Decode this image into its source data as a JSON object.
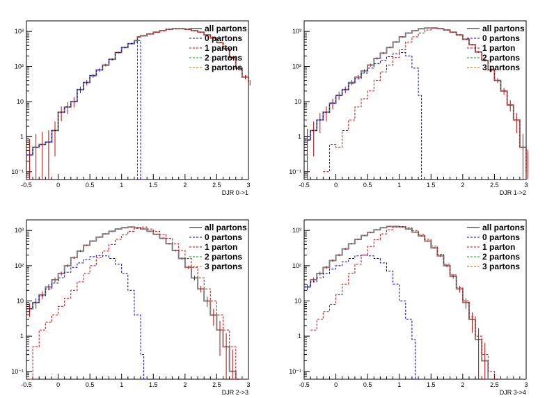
{
  "chart_data": [
    {
      "type": "line",
      "xlabel": "DJR 0->1",
      "xlim": [
        -0.5,
        3
      ],
      "ylim": [
        0.06,
        2000
      ],
      "yscale": "log",
      "grid": false,
      "legend_position": "top-right",
      "x_ticks": [
        "-0.5",
        "0",
        "0.5",
        "1",
        "1.5",
        "2",
        "2.5",
        "3"
      ],
      "y_ticks": [
        "10⁻¹",
        "1",
        "10",
        "10²",
        "10³"
      ],
      "series": [
        {
          "name": "all partons",
          "color": "#808080",
          "style": "solid",
          "x": [
            -0.5,
            -0.4,
            -0.3,
            -0.2,
            -0.1,
            0,
            0.1,
            0.2,
            0.3,
            0.4,
            0.5,
            0.6,
            0.7,
            0.8,
            0.9,
            1.0,
            1.1,
            1.2,
            1.25,
            1.3,
            1.4,
            1.5,
            1.6,
            1.7,
            1.8,
            1.9,
            2.0,
            2.1,
            2.2,
            2.3,
            2.4,
            2.5,
            2.6,
            2.7,
            2.8,
            2.9,
            3.0
          ],
          "y": [
            0.3,
            0.5,
            0.6,
            0.7,
            1.5,
            5,
            7,
            10,
            22,
            35,
            55,
            80,
            110,
            160,
            250,
            350,
            450,
            550,
            700,
            750,
            850,
            950,
            1050,
            1150,
            1200,
            1200,
            1150,
            1050,
            950,
            800,
            650,
            480,
            320,
            180,
            90,
            50,
            35
          ]
        },
        {
          "name": "0 partons",
          "color": "#0000cc",
          "style": "dashed",
          "x": [
            -0.5,
            -0.4,
            -0.3,
            -0.2,
            -0.1,
            0,
            0.1,
            0.2,
            0.3,
            0.4,
            0.5,
            0.6,
            0.7,
            0.8,
            0.9,
            1.0,
            1.1,
            1.2,
            1.25,
            1.3
          ],
          "y": [
            0.3,
            0.5,
            0.6,
            0.7,
            1.5,
            5,
            7,
            10,
            22,
            35,
            55,
            80,
            110,
            160,
            250,
            350,
            450,
            500,
            550,
            0.06
          ]
        },
        {
          "name": "1 parton",
          "color": "#cc0000",
          "style": "dashed",
          "x": [
            1.2,
            1.25,
            1.3,
            1.4,
            1.5,
            1.6,
            1.7,
            1.8,
            1.9,
            2.0,
            2.1,
            2.2,
            2.3,
            2.4,
            2.5,
            2.6,
            2.7,
            2.8,
            2.9,
            3.0
          ],
          "y": [
            0.06,
            700,
            750,
            850,
            950,
            1050,
            1150,
            1200,
            1200,
            1150,
            1050,
            950,
            800,
            650,
            480,
            320,
            180,
            90,
            50,
            35
          ]
        },
        {
          "name": "2 partons",
          "color": "#00aa00",
          "style": "dashed",
          "x": [],
          "y": []
        },
        {
          "name": "3 partons",
          "color": "#cc6600",
          "style": "dashed",
          "x": [],
          "y": []
        }
      ]
    },
    {
      "type": "line",
      "xlabel": "DJR 1->2",
      "xlim": [
        -0.5,
        3
      ],
      "ylim": [
        0.06,
        2000
      ],
      "yscale": "log",
      "grid": false,
      "legend_position": "top-right",
      "x_ticks": [
        "-0.5",
        "0",
        "0.5",
        "1",
        "1.5",
        "2",
        "2.5",
        "3"
      ],
      "y_ticks": [
        "10⁻¹",
        "1",
        "10",
        "10²",
        "10³"
      ],
      "series": [
        {
          "name": "all partons",
          "color": "#808080",
          "style": "solid",
          "x": [
            -0.5,
            -0.4,
            -0.3,
            -0.2,
            -0.1,
            0,
            0.1,
            0.2,
            0.3,
            0.4,
            0.5,
            0.6,
            0.7,
            0.8,
            0.9,
            1.0,
            1.1,
            1.2,
            1.3,
            1.4,
            1.5,
            1.6,
            1.7,
            1.8,
            1.9,
            2.0,
            2.1,
            2.2,
            2.3,
            2.4,
            2.5,
            2.6,
            2.7,
            2.8,
            2.9,
            3.0
          ],
          "y": [
            0.8,
            1.5,
            3,
            5,
            9,
            15,
            22,
            35,
            50,
            75,
            110,
            170,
            240,
            350,
            500,
            700,
            900,
            1050,
            1200,
            1250,
            1250,
            1200,
            1100,
            950,
            800,
            600,
            420,
            260,
            150,
            80,
            40,
            20,
            8,
            3,
            0.5,
            0.1
          ]
        },
        {
          "name": "0 partons",
          "color": "#0000cc",
          "style": "dashed",
          "x": [
            -0.5,
            -0.4,
            -0.3,
            -0.2,
            -0.1,
            0,
            0.1,
            0.2,
            0.3,
            0.4,
            0.5,
            0.6,
            0.7,
            0.8,
            0.9,
            1.0,
            1.1,
            1.2,
            1.3,
            1.35
          ],
          "y": [
            0.8,
            1.5,
            3,
            5,
            9,
            15,
            22,
            33,
            45,
            65,
            90,
            120,
            150,
            190,
            230,
            250,
            200,
            90,
            15,
            0.06
          ]
        },
        {
          "name": "1 parton",
          "color": "#cc0000",
          "style": "dashed",
          "x": [
            -0.2,
            -0.1,
            0,
            0.1,
            0.2,
            0.3,
            0.4,
            0.5,
            0.6,
            0.7,
            0.8,
            0.9,
            1.0,
            1.1,
            1.2,
            1.3,
            1.4,
            1.5,
            1.6,
            1.7,
            1.8,
            1.9,
            2.0,
            2.1,
            2.2,
            2.3,
            2.4,
            2.5,
            2.6,
            2.7,
            2.8,
            2.9,
            3.0
          ],
          "y": [
            0.1,
            0.6,
            0.5,
            1.5,
            3,
            7,
            12,
            20,
            40,
            70,
            110,
            180,
            300,
            500,
            700,
            900,
            1100,
            1250,
            1200,
            1100,
            950,
            800,
            600,
            420,
            260,
            150,
            80,
            40,
            20,
            8,
            3,
            0.5,
            0.1
          ]
        },
        {
          "name": "2 partons",
          "color": "#00aa00",
          "style": "dashed",
          "x": [],
          "y": []
        },
        {
          "name": "3 partons",
          "color": "#cc6600",
          "style": "dashed",
          "x": [],
          "y": []
        }
      ]
    },
    {
      "type": "line",
      "xlabel": "DJR 2->3",
      "xlim": [
        -0.5,
        3
      ],
      "ylim": [
        0.06,
        2000
      ],
      "yscale": "log",
      "grid": false,
      "legend_position": "top-right",
      "x_ticks": [
        "-0.5",
        "0",
        "0.5",
        "1",
        "1.5",
        "2",
        "2.5",
        "3"
      ],
      "y_ticks": [
        "10⁻¹",
        "1",
        "10",
        "10²",
        "10³"
      ],
      "series": [
        {
          "name": "all partons",
          "color": "#808080",
          "style": "solid",
          "x": [
            -0.5,
            -0.4,
            -0.3,
            -0.2,
            -0.1,
            0,
            0.1,
            0.2,
            0.3,
            0.4,
            0.5,
            0.6,
            0.7,
            0.8,
            0.9,
            1.0,
            1.1,
            1.2,
            1.3,
            1.4,
            1.5,
            1.6,
            1.7,
            1.8,
            1.9,
            2.0,
            2.1,
            2.2,
            2.3,
            2.4,
            2.5,
            2.6,
            2.7,
            2.8,
            2.9,
            3.0
          ],
          "y": [
            6,
            9,
            15,
            25,
            40,
            60,
            100,
            170,
            260,
            380,
            500,
            650,
            800,
            950,
            1100,
            1200,
            1250,
            1200,
            1100,
            950,
            780,
            600,
            420,
            270,
            160,
            90,
            45,
            22,
            10,
            4,
            1.5,
            0.5,
            0.1,
            0.06,
            0.06,
            0.06
          ]
        },
        {
          "name": "0 partons",
          "color": "#0000cc",
          "style": "dashed",
          "x": [
            -0.5,
            -0.4,
            -0.3,
            -0.2,
            -0.1,
            0,
            0.1,
            0.2,
            0.3,
            0.4,
            0.5,
            0.6,
            0.7,
            0.8,
            0.9,
            1.0,
            1.1,
            1.2,
            1.3,
            1.35
          ],
          "y": [
            6,
            9,
            14,
            22,
            32,
            45,
            65,
            90,
            120,
            150,
            180,
            195,
            190,
            160,
            110,
            60,
            20,
            4,
            0.3,
            0.06
          ]
        },
        {
          "name": "1 parton",
          "color": "#cc0000",
          "style": "dashed",
          "x": [
            -0.45,
            -0.4,
            -0.3,
            -0.2,
            -0.1,
            0,
            0.1,
            0.2,
            0.3,
            0.4,
            0.5,
            0.6,
            0.7,
            0.8,
            0.9,
            1.0,
            1.1,
            1.2,
            1.3,
            1.4,
            1.5,
            1.6,
            1.7,
            1.8,
            1.9,
            2.0,
            2.1,
            2.2,
            2.3,
            2.4,
            2.5,
            2.6,
            2.7,
            2.8
          ],
          "y": [
            0.06,
            0.5,
            1.5,
            2.5,
            4,
            7,
            12,
            20,
            35,
            60,
            100,
            170,
            260,
            400,
            560,
            750,
            950,
            1150,
            1250,
            1100,
            950,
            780,
            600,
            420,
            270,
            160,
            90,
            45,
            22,
            10,
            4,
            1.5,
            0.5,
            0.06
          ]
        },
        {
          "name": "2 partons",
          "color": "#00aa00",
          "style": "dashed",
          "x": [],
          "y": []
        },
        {
          "name": "3 partons",
          "color": "#cc6600",
          "style": "dashed",
          "x": [],
          "y": []
        }
      ]
    },
    {
      "type": "line",
      "xlabel": "DJR 3->4",
      "xlim": [
        -0.5,
        3
      ],
      "ylim": [
        0.06,
        2000
      ],
      "yscale": "log",
      "grid": false,
      "legend_position": "top-right",
      "x_ticks": [
        "-0.5",
        "0",
        "0.5",
        "1",
        "1.5",
        "2",
        "2.5",
        "3"
      ],
      "y_ticks": [
        "10⁻¹",
        "1",
        "10",
        "10²",
        "10³"
      ],
      "series": [
        {
          "name": "all partons",
          "color": "#808080",
          "style": "solid",
          "x": [
            -0.5,
            -0.4,
            -0.3,
            -0.2,
            -0.1,
            0,
            0.1,
            0.2,
            0.3,
            0.4,
            0.5,
            0.6,
            0.7,
            0.8,
            0.9,
            1.0,
            1.1,
            1.2,
            1.3,
            1.4,
            1.5,
            1.6,
            1.7,
            1.8,
            1.9,
            2.0,
            2.1,
            2.2,
            2.3,
            2.4,
            2.5,
            2.6,
            2.7,
            2.8,
            2.9,
            3.0
          ],
          "y": [
            25,
            40,
            60,
            90,
            140,
            200,
            300,
            420,
            560,
            720,
            880,
            1050,
            1200,
            1300,
            1300,
            1250,
            1100,
            900,
            700,
            500,
            320,
            190,
            100,
            50,
            22,
            9,
            3,
            0.8,
            0.2,
            0.06,
            0.06,
            0.06,
            0.06,
            0.06,
            0.06,
            0.06
          ]
        },
        {
          "name": "0 partons",
          "color": "#0000cc",
          "style": "dashed",
          "x": [
            -0.5,
            -0.4,
            -0.3,
            -0.2,
            -0.1,
            0,
            0.1,
            0.2,
            0.3,
            0.4,
            0.5,
            0.6,
            0.7,
            0.8,
            0.9,
            1.0,
            1.1,
            1.2,
            1.25
          ],
          "y": [
            25,
            35,
            45,
            60,
            80,
            100,
            130,
            160,
            190,
            200,
            190,
            160,
            120,
            70,
            30,
            10,
            3,
            0.8,
            0.06
          ]
        },
        {
          "name": "1 parton",
          "color": "#cc0000",
          "style": "dashed",
          "x": [
            -0.4,
            -0.3,
            -0.2,
            -0.1,
            0,
            0.1,
            0.2,
            0.3,
            0.4,
            0.5,
            0.6,
            0.7,
            0.8,
            0.9,
            1.0,
            1.1,
            1.2,
            1.3,
            1.4,
            1.5,
            1.6,
            1.7,
            1.8,
            1.9,
            2.0,
            2.1,
            2.2,
            2.3,
            2.4,
            2.5
          ],
          "y": [
            1.5,
            3,
            5,
            8,
            15,
            30,
            60,
            110,
            200,
            350,
            550,
            800,
            1050,
            1250,
            1300,
            1200,
            1000,
            780,
            560,
            360,
            210,
            110,
            55,
            24,
            10,
            3.5,
            1,
            0.3,
            0.1,
            0.06
          ]
        },
        {
          "name": "2 partons",
          "color": "#00aa00",
          "style": "dashed",
          "x": [],
          "y": []
        },
        {
          "name": "3 partons",
          "color": "#cc6600",
          "style": "dashed",
          "x": [],
          "y": []
        }
      ]
    }
  ]
}
